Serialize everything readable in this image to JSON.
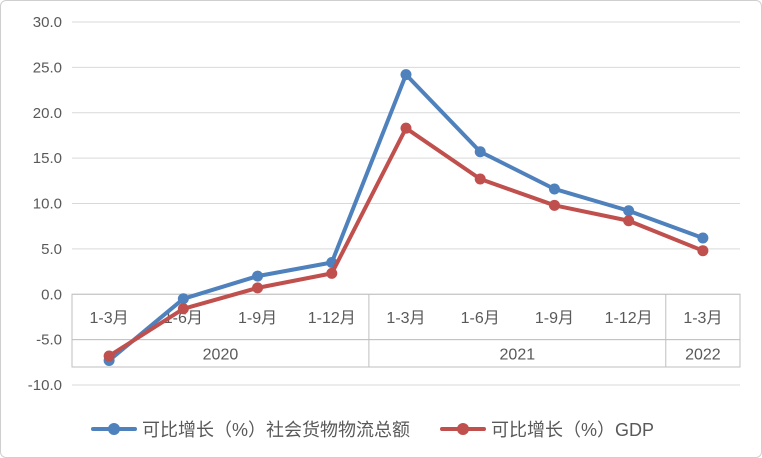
{
  "chart_data": {
    "type": "line",
    "title": "",
    "xlabel": "",
    "ylabel": "",
    "categories": [
      "1-3月",
      "1-6月",
      "1-9月",
      "1-12月",
      "1-3月",
      "1-6月",
      "1-9月",
      "1-12月",
      "1-3月"
    ],
    "year_groups": [
      {
        "label": "2020",
        "span": 4
      },
      {
        "label": "2021",
        "span": 4
      },
      {
        "label": "2022",
        "span": 1
      }
    ],
    "series": [
      {
        "name": "可比增长（%）社会货物物流总额",
        "color": "#4F81BD",
        "values": [
          -7.3,
          -0.5,
          2.0,
          3.5,
          24.2,
          15.7,
          11.6,
          9.2,
          6.2
        ]
      },
      {
        "name": "可比增长（%）GDP",
        "color": "#C0504D",
        "values": [
          -6.8,
          -1.6,
          0.7,
          2.3,
          18.3,
          12.7,
          9.8,
          8.1,
          4.8
        ]
      }
    ],
    "ylim": [
      -10,
      30
    ],
    "ytick_step": 5,
    "ytick_labels": [
      "30.0",
      "25.0",
      "20.0",
      "15.0",
      "10.0",
      "5.0",
      "0.0",
      "-5.0",
      "-10.0"
    ],
    "grid": "horizontal-only",
    "legend_position": "bottom",
    "marker": "circle"
  },
  "styles": {
    "gridline_color": "#d9d9d9",
    "band_border_color": "#bfbfbf",
    "label_color": "#595959",
    "frame_border_color": "#cfcfcf",
    "background": "#ffffff"
  }
}
